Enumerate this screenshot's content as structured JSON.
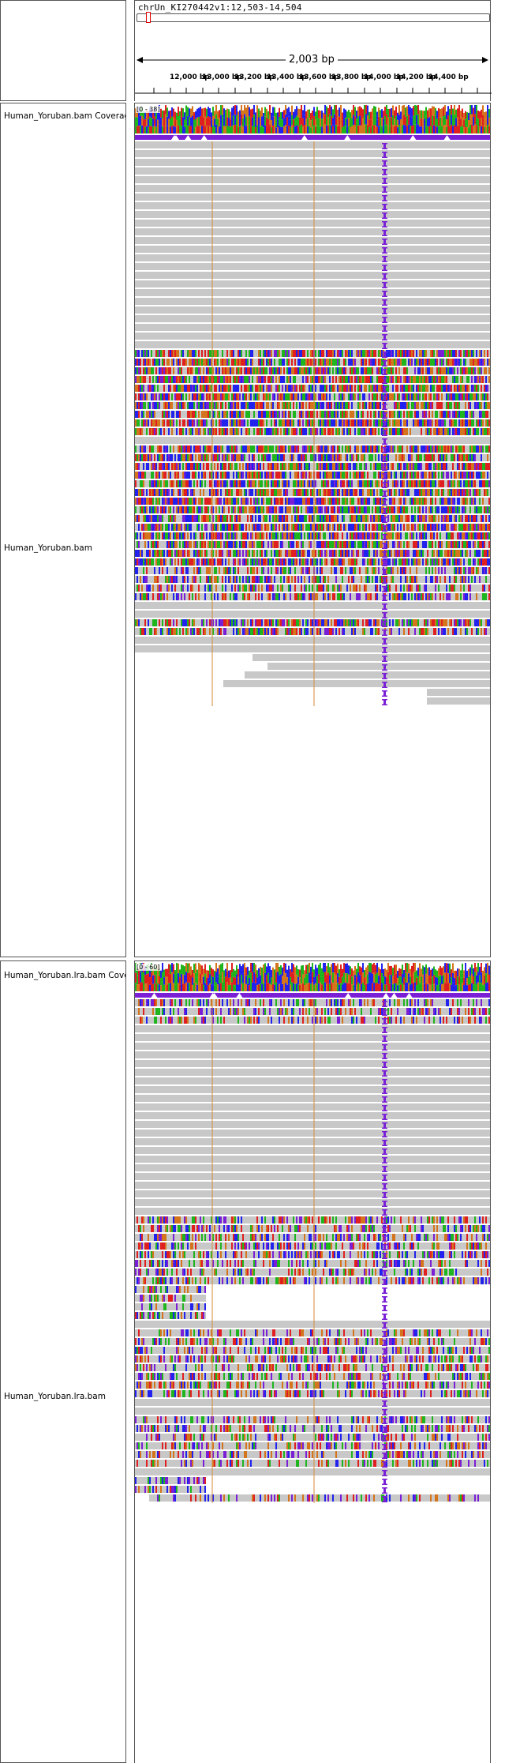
{
  "ruler": {
    "locus": "chrUn_KI270442v1:12,503-14,504",
    "span_label": "2,003 bp",
    "ticks": [
      "12,000 bp",
      "13,000 bp",
      "13,200 bp",
      "13,400 bp",
      "13,600 bp",
      "13,800 bp",
      "14,000 bp",
      "14,200 bp",
      "14,400 bp"
    ]
  },
  "tracks": [
    {
      "coverage_name": "Human_Yoruban.bam Coverage",
      "coverage_range": "[0 - 38]",
      "alignment_name": "Human_Yoruban.bam"
    },
    {
      "coverage_name": "Human_Yoruban.lra.bam Coverage",
      "coverage_range": "[0 - 60]",
      "alignment_name": "Human_Yoruban.lra.bam"
    }
  ],
  "colors": {
    "read_gray": "#c8c8c8",
    "insertion_purple": "#7a1fd6",
    "base_A": "#1fb51f",
    "base_C": "#2222ee",
    "base_G": "#d4741c",
    "base_T": "#e02020",
    "guide_line": "#d48b3a"
  }
}
